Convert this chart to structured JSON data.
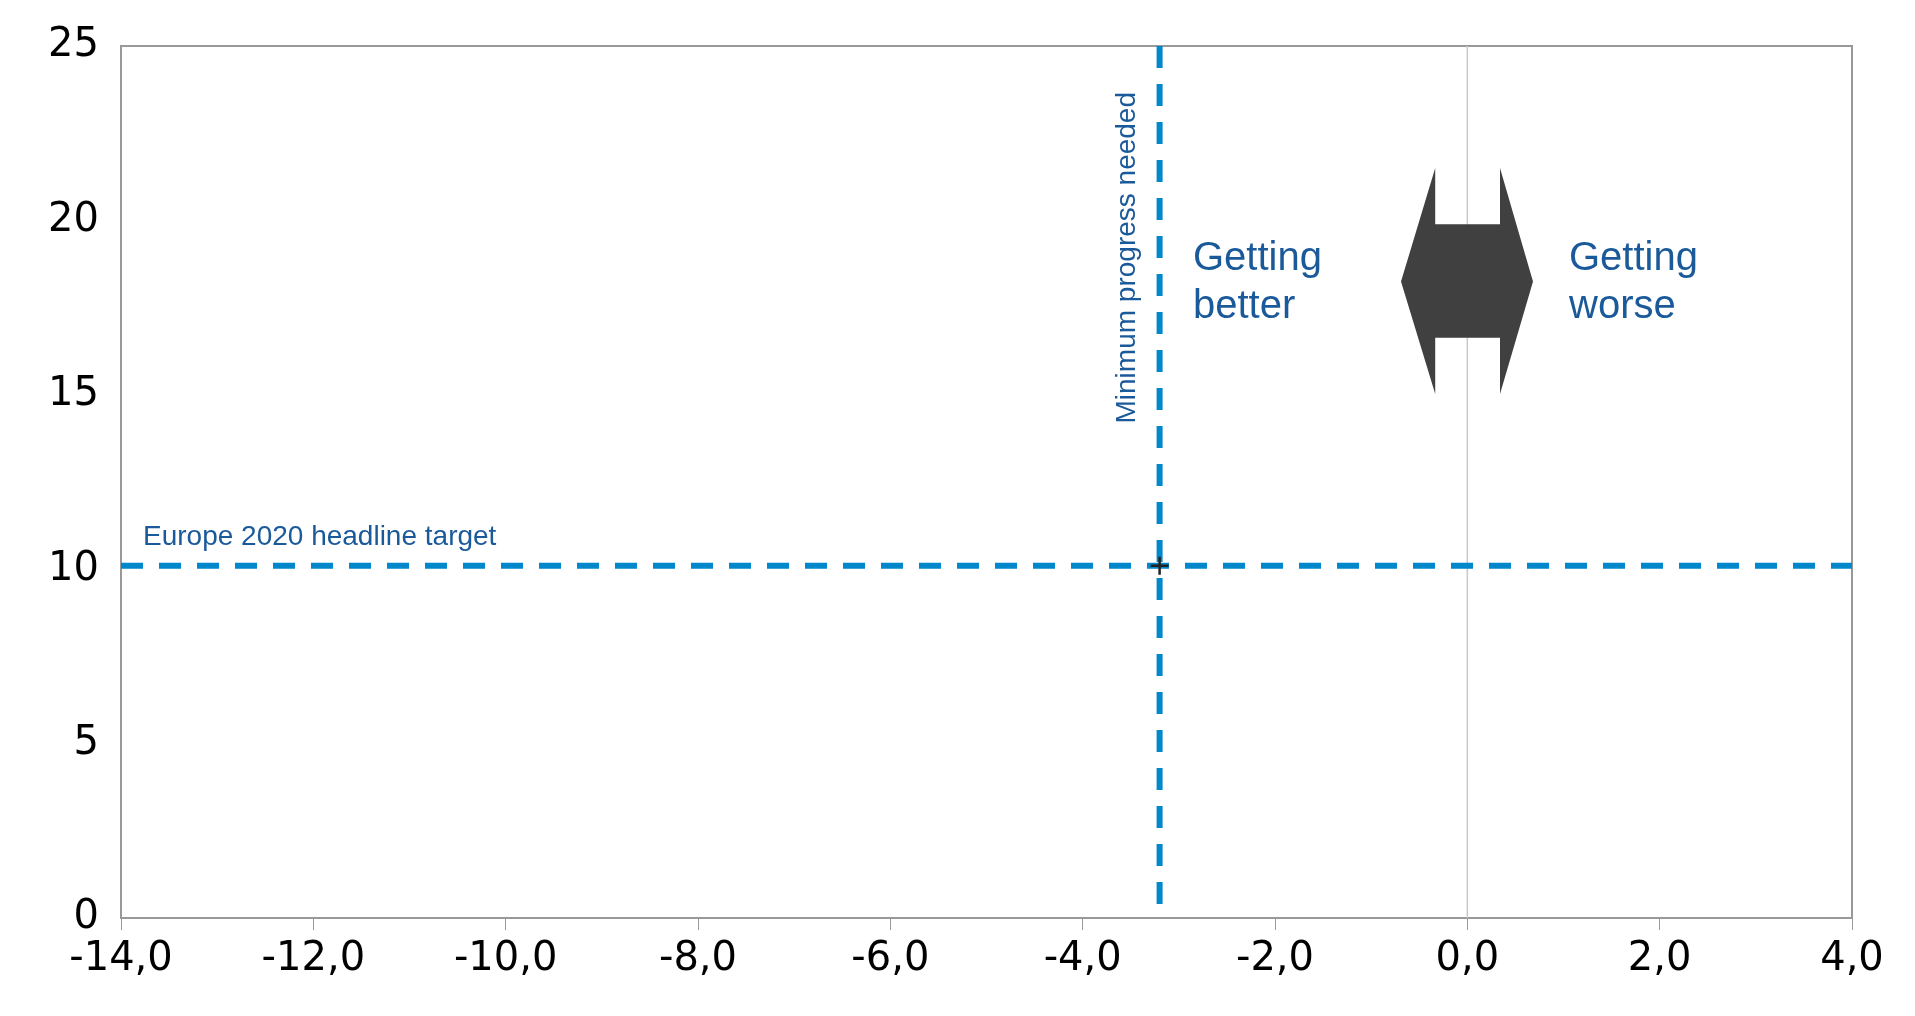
{
  "chart_data": {
    "type": "scatter",
    "x": [
      -3.2
    ],
    "values": [
      10.1
    ],
    "color": "#222222",
    "marker": "cross",
    "xlim": [
      -14,
      4
    ],
    "xticks": [
      {
        "value": -14,
        "label": "-14,0"
      },
      {
        "value": -12,
        "label": "-12,0"
      },
      {
        "value": -10,
        "label": "-10,0"
      },
      {
        "value": -8,
        "label": "-8,0"
      },
      {
        "value": -6,
        "label": "-6,0"
      },
      {
        "value": -4,
        "label": "-4,0"
      },
      {
        "value": -2,
        "label": "-2,0"
      },
      {
        "value": 0,
        "label": "0,0"
      },
      {
        "value": 2,
        "label": "2,0"
      },
      {
        "value": 4,
        "label": "4,0"
      }
    ],
    "ylim": [
      0,
      25
    ],
    "yticks": [
      0,
      5,
      10,
      15,
      20,
      25
    ],
    "grid": false,
    "legend": false,
    "ref_lines": [
      {
        "axis": "x",
        "value": 0,
        "color": "#c8c8c8",
        "line_style": "solid"
      },
      {
        "axis": "y",
        "value": 10.1,
        "label": "Europe 2020 headline target",
        "color": "#0087cc",
        "line_style": "dashed"
      },
      {
        "axis": "x",
        "value": -3.2,
        "label": "Minimum progress needed",
        "color": "#0087cc",
        "line_style": "dashed"
      }
    ],
    "annotations": [
      "Getting better",
      "Getting worse"
    ]
  }
}
